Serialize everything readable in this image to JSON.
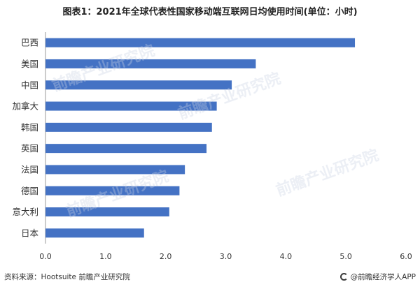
{
  "title": "图表1：2021年全球代表性国家移动端互联网日均使用时间(单位：小时)",
  "source": "资料来源：Hootsuite 前瞻产业研究院",
  "credit": "@前瞻经济学人APP",
  "watermark": "前瞻产业研究院",
  "colors": {
    "bar": "#4472c4",
    "axis": "#999999",
    "grid": "#d9d9d9"
  },
  "chart_data": {
    "type": "bar",
    "orientation": "horizontal",
    "categories": [
      "巴西",
      "美国",
      "中国",
      "加拿大",
      "韩国",
      "英国",
      "法国",
      "德国",
      "意大利",
      "日本"
    ],
    "values": [
      5.15,
      3.5,
      3.1,
      2.85,
      2.77,
      2.68,
      2.32,
      2.23,
      2.06,
      1.64
    ],
    "xlim": [
      0,
      6
    ],
    "xticks": [
      "0.0",
      "1.0",
      "2.0",
      "3.0",
      "4.0",
      "5.0",
      "6.0"
    ],
    "grid": false,
    "legend": "none"
  }
}
